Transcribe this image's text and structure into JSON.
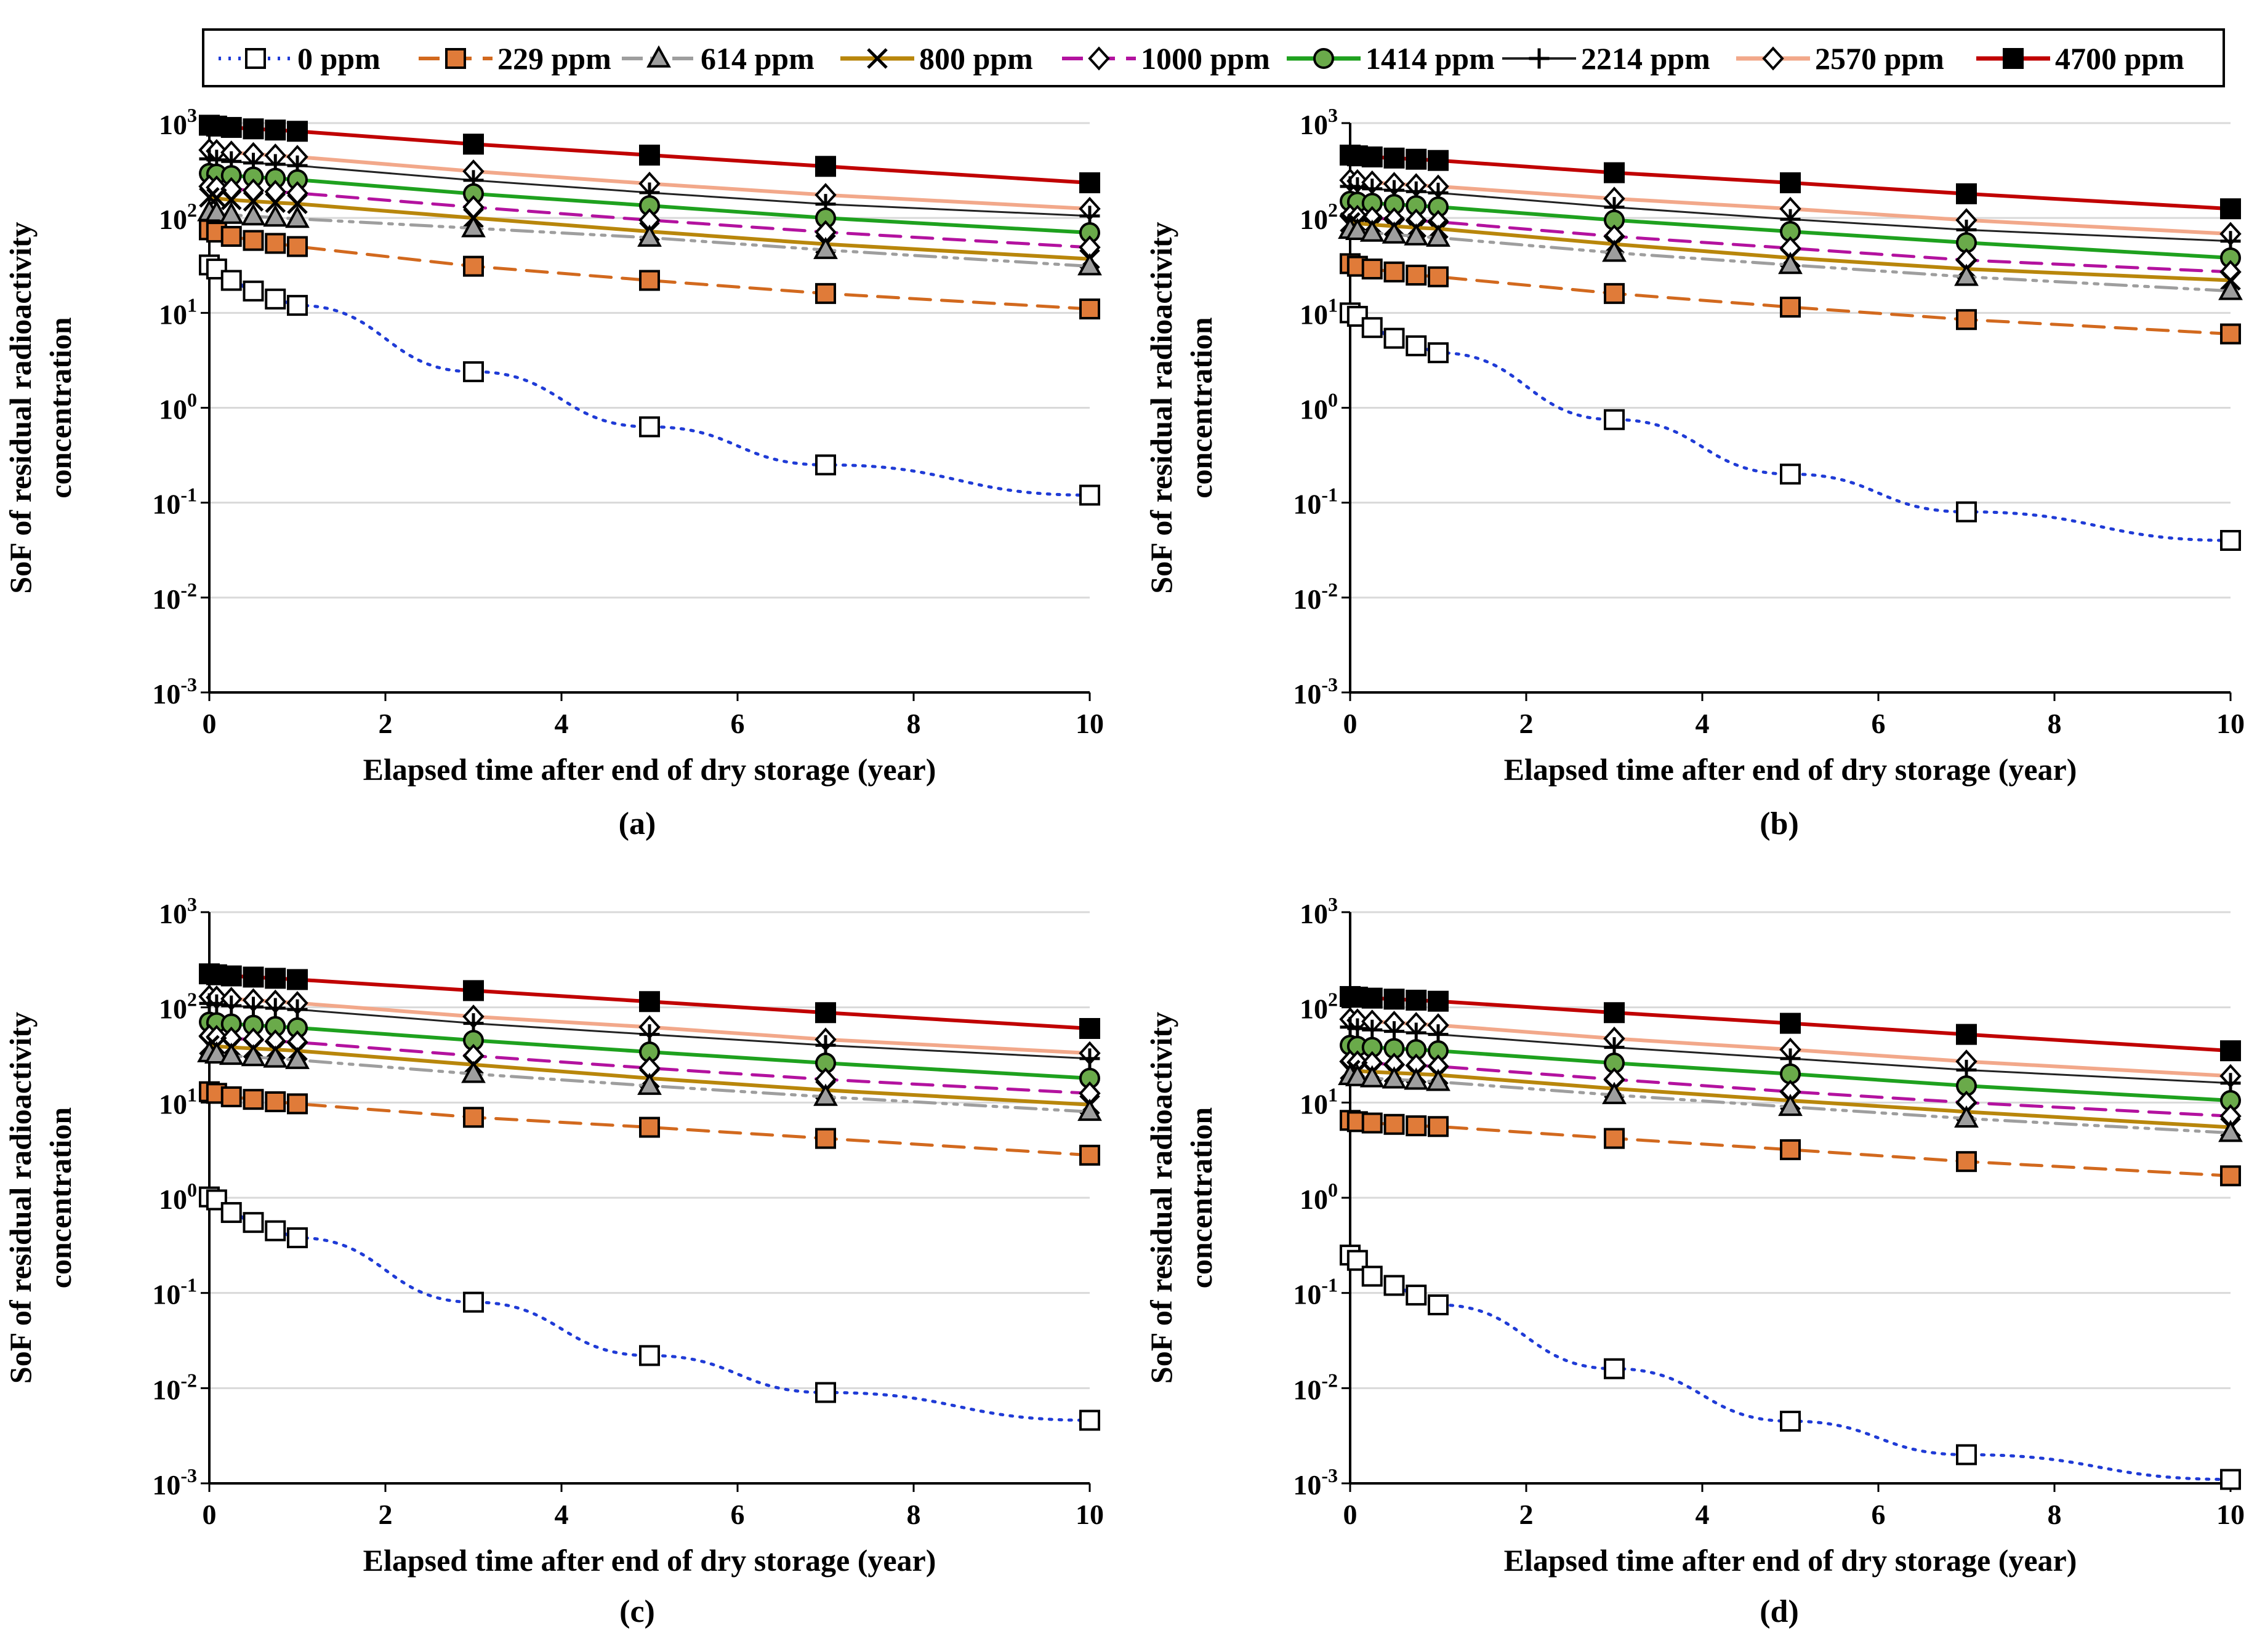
{
  "figure": {
    "description_hidden": false
  },
  "legend": {
    "entries": [
      {
        "label": "0 ppm",
        "color": "#1f3bd6",
        "dash": "dot",
        "marker": "square-open",
        "width": 5
      },
      {
        "label": "229 ppm",
        "color": "#d2691e",
        "dash": "dash",
        "marker": "square-filled",
        "markerFill": "#e07b39",
        "width": 5
      },
      {
        "label": "614 ppm",
        "color": "#9e9e9e",
        "dash": "dashdotdot",
        "marker": "triangle",
        "markerFill": "#9e9e9e",
        "width": 5
      },
      {
        "label": "800 ppm",
        "color": "#b8860b",
        "dash": "solid",
        "marker": "x",
        "width": 6
      },
      {
        "label": "1000 ppm",
        "color": "#b3129f",
        "dash": "dash",
        "marker": "diamond-open",
        "width": 5
      },
      {
        "label": "1414 ppm",
        "color": "#1ea11e",
        "dash": "solid",
        "marker": "circle-filled",
        "markerFill": "#6aaa4a",
        "width": 6
      },
      {
        "label": "2214 ppm",
        "color": "#222222",
        "dash": "solid",
        "marker": "plus",
        "width": 3
      },
      {
        "label": "2570 ppm",
        "color": "#f2a88a",
        "dash": "solid",
        "marker": "diamond-open",
        "width": 6
      },
      {
        "label": "4700 ppm",
        "color": "#c00000",
        "dash": "solid",
        "marker": "square-filled",
        "markerFill": "#000000",
        "width": 6
      }
    ]
  },
  "chart_data": [
    {
      "type": "line",
      "label": "(a)",
      "xlabel": "Elapsed time after end of dry storage (year)",
      "ylabel": [
        "SoF of residual radioactivity",
        "concentration"
      ],
      "yscale": "log",
      "xlim": [
        0,
        10
      ],
      "ylim_exp": [
        -3,
        3
      ],
      "xticks": [
        "0",
        "2",
        "4",
        "6",
        "8",
        "10"
      ],
      "grid": "horizontal",
      "x": [
        0,
        0.083,
        0.25,
        0.5,
        0.75,
        1,
        3,
        5,
        7,
        10
      ],
      "series": [
        {
          "name": "0 ppm",
          "values": [
            32,
            29,
            22,
            17,
            14,
            12,
            2.4,
            0.63,
            0.25,
            0.12
          ]
        },
        {
          "name": "229 ppm",
          "values": [
            75,
            71,
            64,
            58,
            54,
            50,
            31,
            22,
            16,
            11
          ]
        },
        {
          "name": "614 ppm",
          "values": [
            115,
            112,
            108,
            104,
            101,
            98,
            78,
            62,
            46,
            31
          ]
        },
        {
          "name": "800 ppm",
          "values": [
            165,
            161,
            155,
            150,
            145,
            141,
            100,
            72,
            53,
            37
          ]
        },
        {
          "name": "1000 ppm",
          "values": [
            215,
            210,
            202,
            195,
            189,
            183,
            130,
            95,
            71,
            49
          ]
        },
        {
          "name": "1414 ppm",
          "values": [
            295,
            290,
            280,
            270,
            262,
            253,
            180,
            135,
            100,
            70
          ]
        },
        {
          "name": "2214 ppm",
          "values": [
            420,
            410,
            395,
            380,
            368,
            356,
            250,
            185,
            140,
            105
          ]
        },
        {
          "name": "2570 ppm",
          "values": [
            520,
            508,
            490,
            472,
            456,
            441,
            310,
            230,
            175,
            125
          ]
        },
        {
          "name": "4700 ppm",
          "values": [
            950,
            930,
            900,
            870,
            845,
            820,
            600,
            460,
            350,
            235
          ]
        }
      ]
    },
    {
      "type": "line",
      "label": "(b)",
      "xlabel": "Elapsed time after end of dry storage (year)",
      "ylabel": [
        "SoF of residual radioactivity",
        "concentration"
      ],
      "yscale": "log",
      "xlim": [
        0,
        10
      ],
      "ylim_exp": [
        -3,
        3
      ],
      "xticks": [
        "0",
        "2",
        "4",
        "6",
        "8",
        "10"
      ],
      "grid": "horizontal",
      "x": [
        0,
        0.083,
        0.25,
        0.5,
        0.75,
        1,
        3,
        5,
        7,
        10
      ],
      "series": [
        {
          "name": "0 ppm",
          "values": [
            10,
            9.2,
            7,
            5.4,
            4.5,
            3.8,
            0.75,
            0.2,
            0.08,
            0.04
          ]
        },
        {
          "name": "229 ppm",
          "values": [
            33,
            31,
            29,
            27,
            25,
            24,
            16,
            11.5,
            8.5,
            6
          ]
        },
        {
          "name": "614 ppm",
          "values": [
            75,
            73,
            70,
            67,
            64,
            62,
            43,
            32,
            24,
            17
          ]
        },
        {
          "name": "800 ppm",
          "values": [
            90,
            88,
            85,
            82,
            79,
            77,
            53,
            38,
            29,
            22
          ]
        },
        {
          "name": "1000 ppm",
          "values": [
            105,
            103,
            100,
            97,
            94,
            91,
            64,
            48,
            36,
            27
          ]
        },
        {
          "name": "1414 ppm",
          "values": [
            150,
            147,
            143,
            139,
            135,
            131,
            95,
            72,
            55,
            38
          ]
        },
        {
          "name": "2214 ppm",
          "values": [
            215,
            210,
            203,
            196,
            190,
            184,
            130,
            97,
            75,
            57
          ]
        },
        {
          "name": "2570 ppm",
          "values": [
            250,
            245,
            237,
            229,
            222,
            215,
            160,
            125,
            95,
            68
          ]
        },
        {
          "name": "4700 ppm",
          "values": [
            460,
            452,
            440,
            428,
            416,
            404,
            300,
            235,
            180,
            125
          ]
        }
      ]
    },
    {
      "type": "line",
      "label": "(c)",
      "xlabel": "Elapsed time after end of dry storage (year)",
      "ylabel": [
        "SoF of residual radioactivity",
        "concentration"
      ],
      "yscale": "log",
      "xlim": [
        0,
        10
      ],
      "ylim_exp": [
        -3,
        3
      ],
      "xticks": [
        "0",
        "2",
        "4",
        "6",
        "8",
        "10"
      ],
      "grid": "horizontal",
      "x": [
        0,
        0.083,
        0.25,
        0.5,
        0.75,
        1,
        3,
        5,
        7,
        10
      ],
      "series": [
        {
          "name": "0 ppm",
          "values": [
            1.02,
            0.95,
            0.7,
            0.55,
            0.45,
            0.38,
            0.08,
            0.022,
            0.009,
            0.0046
          ]
        },
        {
          "name": "229 ppm",
          "values": [
            13,
            12.5,
            11.5,
            10.8,
            10.2,
            9.7,
            7,
            5.5,
            4.2,
            2.8
          ]
        },
        {
          "name": "614 ppm",
          "values": [
            33,
            32,
            31,
            30,
            29,
            28,
            20,
            15,
            11.5,
            8
          ]
        },
        {
          "name": "800 ppm",
          "values": [
            40,
            39,
            38,
            37,
            36,
            35,
            25,
            18,
            13.5,
            9.5
          ]
        },
        {
          "name": "1000 ppm",
          "values": [
            50,
            49,
            47,
            46,
            44,
            43,
            31,
            23,
            17.5,
            12.5
          ]
        },
        {
          "name": "1414 ppm",
          "values": [
            70,
            69,
            67,
            65,
            63,
            61,
            45,
            34,
            26,
            18
          ]
        },
        {
          "name": "2214 ppm",
          "values": [
            110,
            107,
            104,
            101,
            98,
            95,
            68,
            52,
            40,
            29
          ]
        },
        {
          "name": "2570 ppm",
          "values": [
            130,
            127,
            123,
            119,
            115,
            111,
            80,
            62,
            46,
            33
          ]
        },
        {
          "name": "4700 ppm",
          "values": [
            225,
            220,
            214,
            208,
            202,
            196,
            150,
            115,
            88,
            60
          ]
        }
      ]
    },
    {
      "type": "line",
      "label": "(d)",
      "xlabel": "Elapsed time after end of dry storage (year)",
      "ylabel": [
        "SoF of residual radioactivity",
        "concentration"
      ],
      "yscale": "log",
      "xlim": [
        0,
        10
      ],
      "ylim_exp": [
        -3,
        3
      ],
      "xticks": [
        "0",
        "2",
        "4",
        "6",
        "8",
        "10"
      ],
      "grid": "horizontal",
      "x": [
        0,
        0.083,
        0.25,
        0.5,
        0.75,
        1,
        3,
        5,
        7,
        10
      ],
      "series": [
        {
          "name": "0 ppm",
          "values": [
            0.25,
            0.22,
            0.15,
            0.12,
            0.095,
            0.075,
            0.016,
            0.0045,
            0.002,
            0.0011
          ]
        },
        {
          "name": "229 ppm",
          "values": [
            6.5,
            6.3,
            6.1,
            5.9,
            5.7,
            5.6,
            4.2,
            3.2,
            2.4,
            1.7
          ]
        },
        {
          "name": "614 ppm",
          "values": [
            19,
            18.5,
            18,
            17.5,
            17,
            16.5,
            12,
            9,
            6.8,
            4.8
          ]
        },
        {
          "name": "800 ppm",
          "values": [
            22,
            21.5,
            21,
            20.5,
            20,
            19.5,
            14,
            10.5,
            8,
            5.5
          ]
        },
        {
          "name": "1000 ppm",
          "values": [
            27,
            26.5,
            26,
            25,
            24.5,
            24,
            17.5,
            13,
            10,
            7.2
          ]
        },
        {
          "name": "1414 ppm",
          "values": [
            40,
            39,
            38,
            37,
            36,
            35,
            26,
            20,
            15,
            10.5
          ]
        },
        {
          "name": "2214 ppm",
          "values": [
            62,
            60,
            58,
            56,
            54,
            52,
            38,
            29,
            22,
            16
          ]
        },
        {
          "name": "2570 ppm",
          "values": [
            75,
            73,
            71,
            69,
            67,
            65,
            47,
            36,
            27,
            19
          ]
        },
        {
          "name": "4700 ppm",
          "values": [
            130,
            128,
            125,
            122,
            119,
            116,
            88,
            68,
            52,
            35
          ]
        }
      ]
    }
  ]
}
